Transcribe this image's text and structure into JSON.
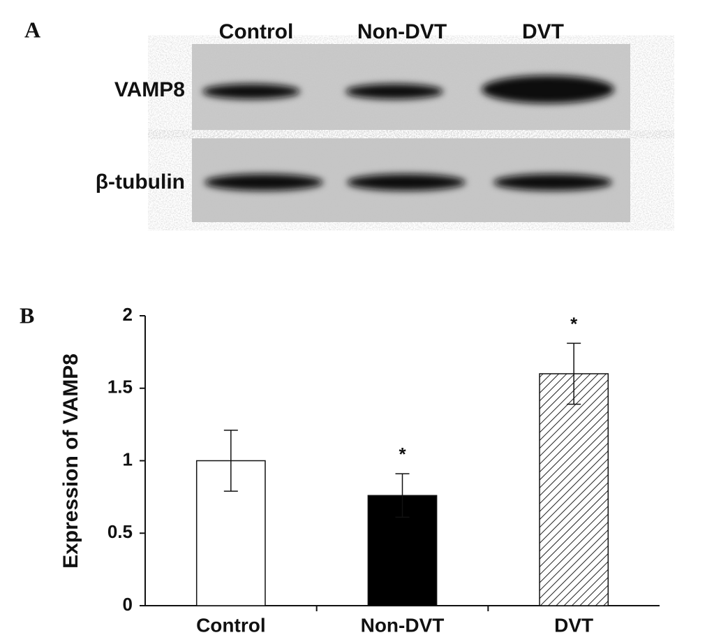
{
  "panel_a": {
    "label": "A",
    "lanes": [
      "Control",
      "Non-DVT",
      "DVT"
    ],
    "rows": [
      "VAMP8",
      "β-tubulin"
    ]
  },
  "chart_data": {
    "type": "bar",
    "panel_label": "B",
    "y_label": "Expression of VAMP8",
    "categories": [
      "Control",
      "Non-DVT",
      "DVT"
    ],
    "values": [
      1.0,
      0.76,
      1.6
    ],
    "errors": [
      0.21,
      0.15,
      0.21
    ],
    "annotations": [
      null,
      "*",
      "*"
    ],
    "colors": [
      "#ffffff",
      "#000000",
      "#ffffff"
    ],
    "hatch": [
      false,
      false,
      true
    ],
    "ylim": [
      0,
      2
    ],
    "yticks": [
      0,
      0.5,
      1,
      1.5,
      2
    ]
  }
}
